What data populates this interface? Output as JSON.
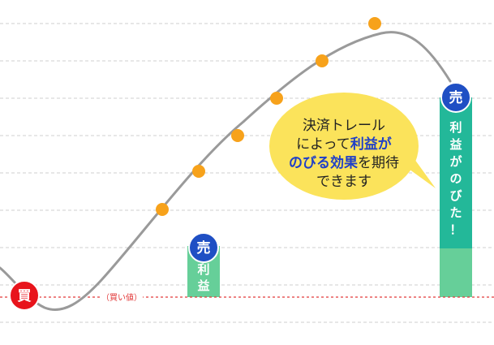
{
  "markers": {
    "buy": "買",
    "sell": "売"
  },
  "buy_price_label": "（買い値）",
  "small_bar": {
    "chars": [
      "利",
      "益"
    ]
  },
  "big_bar": {
    "chars": [
      "利",
      "益",
      "が",
      "の",
      "び",
      "た",
      "！"
    ]
  },
  "bubble": {
    "line1": "決済トレール",
    "line2_prefix": "によって",
    "line2_emphasis": "利益が",
    "line3_emphasis": "のびる効果",
    "line3_suffix": "を期待",
    "line4": "できます"
  },
  "colors": {
    "buy_marker": "#e8141c",
    "sell_marker": "#1f4fc4",
    "profit_bar_dark": "#23b899",
    "profit_bar_light": "#66cf99",
    "trail_dot": "#f7a21b",
    "price_curve": "#9a9a9a",
    "bubble": "#fbe35b",
    "emphasis_text": "#1f3fc8"
  },
  "icons": {
    "buy": "buy-marker-circle",
    "sell": "sell-marker-circle",
    "trail": "trailing-stop-dot"
  }
}
